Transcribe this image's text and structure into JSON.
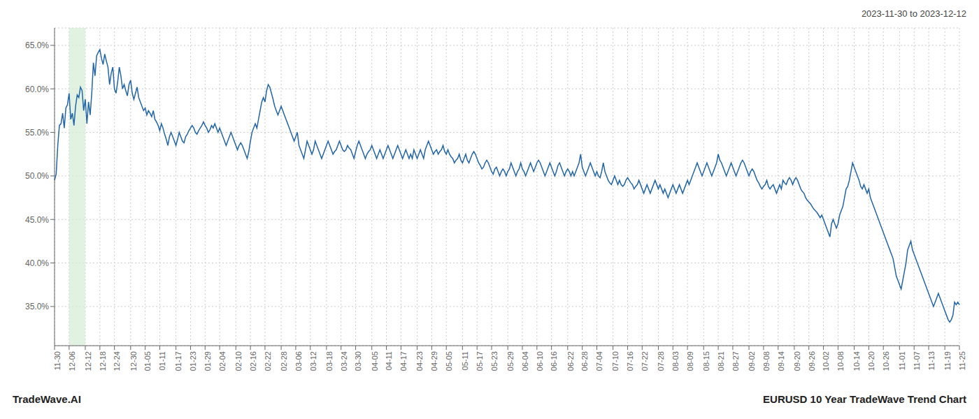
{
  "chart_data": {
    "type": "line",
    "title": "EURUSD 10 Year TradeWave Trend Chart",
    "subtitle": "2023-11-30 to 2023-12-12",
    "annotations": [
      "TradeWave.AI"
    ],
    "color": "#2266aa",
    "grid": true,
    "ylim": [
      30.5,
      67.0
    ],
    "yticks": [
      {
        "value": 35.0,
        "label": "35.0%"
      },
      {
        "value": 40.0,
        "label": "40.0%"
      },
      {
        "value": 45.0,
        "label": "45.0%"
      },
      {
        "value": 50.0,
        "label": "50.0%"
      },
      {
        "value": 55.0,
        "label": "55.0%"
      },
      {
        "value": 60.0,
        "label": "60.0%"
      },
      {
        "value": 65.0,
        "label": "65.0%"
      }
    ],
    "shaded_region": {
      "x_start": "12-06",
      "x_end": "12-12",
      "color": "#d6ecd6"
    },
    "categories": [
      "11-30",
      null,
      null,
      null,
      null,
      null,
      null,
      null,
      null,
      "12-06",
      null,
      null,
      null,
      null,
      null,
      null,
      null,
      null,
      null,
      "12-12",
      null,
      null,
      null,
      null,
      null,
      null,
      null,
      null,
      "12-18",
      null,
      null,
      null,
      null,
      null,
      null,
      null,
      null,
      "12-24",
      null,
      null,
      null,
      null,
      null,
      null,
      null,
      null,
      null,
      "12-30",
      null,
      null,
      null,
      null,
      null,
      null,
      null,
      null,
      "01-05",
      null,
      null,
      null,
      null,
      null,
      null,
      null,
      null,
      "01-11",
      null,
      null,
      null,
      null,
      null,
      null,
      null,
      null,
      null,
      "01-17",
      null,
      null,
      null,
      null,
      null,
      null,
      null,
      null,
      "01-23",
      null,
      null,
      null,
      null,
      null,
      null,
      null,
      null,
      "01-29",
      null,
      null,
      null,
      null,
      null,
      null,
      null,
      null,
      "02-04",
      null,
      null,
      null,
      null,
      null,
      null,
      null,
      null,
      null,
      "02-10",
      null,
      null,
      null,
      null,
      null,
      null,
      null,
      null,
      "02-16",
      null,
      null,
      null,
      null,
      null,
      null,
      null,
      null,
      "02-22",
      null,
      null,
      null,
      null,
      null,
      null,
      null,
      null,
      null,
      "02-28",
      null,
      null,
      null,
      null,
      null,
      null,
      null,
      null,
      "03-06",
      null,
      null,
      null,
      null,
      null,
      null,
      null,
      null,
      "03-12",
      null,
      null,
      null,
      null,
      null,
      null,
      null,
      null,
      null,
      "03-18",
      null,
      null,
      null,
      null,
      null,
      null,
      null,
      null,
      "03-24",
      null,
      null,
      null,
      null,
      null,
      null,
      null,
      null,
      "03-30",
      null,
      null,
      null,
      null,
      null,
      null,
      null,
      null,
      null,
      "04-05",
      null,
      null,
      null,
      null,
      null,
      null,
      null,
      null,
      "04-11",
      null,
      null,
      null,
      null,
      null,
      null,
      null,
      null,
      "04-17",
      null,
      null,
      null,
      null,
      null,
      null,
      null,
      null,
      null,
      "04-23",
      null,
      null,
      null,
      null,
      null,
      null,
      null,
      null,
      "04-29",
      null,
      null,
      null,
      null,
      null,
      null,
      null,
      null,
      "05-05",
      null,
      null,
      null,
      null,
      null,
      null,
      null,
      null,
      null,
      "05-11",
      null,
      null,
      null,
      null,
      null,
      null,
      null,
      null,
      "05-17",
      null,
      null,
      null,
      null,
      null,
      null,
      null,
      null,
      "05-23",
      null,
      null,
      null,
      null,
      null,
      null,
      null,
      null,
      null,
      "05-29",
      null,
      null,
      null,
      null,
      null,
      null,
      null,
      null,
      "06-04",
      null,
      null,
      null,
      null,
      null,
      null,
      null,
      null,
      "06-10",
      null,
      null,
      null,
      null,
      null,
      null,
      null,
      null,
      "06-16",
      null,
      null,
      null,
      null,
      null,
      null,
      null,
      null,
      null,
      "06-22",
      null,
      null,
      null,
      null,
      null,
      null,
      null,
      null,
      "06-28",
      null,
      null,
      null,
      null,
      null,
      null,
      null,
      null,
      "07-04",
      null,
      null,
      null,
      null,
      null,
      null,
      null,
      null,
      null,
      "07-10",
      null,
      null,
      null,
      null,
      null,
      null,
      null,
      null,
      "07-16",
      null,
      null,
      null,
      null,
      null,
      null,
      null,
      null,
      "07-22",
      null,
      null,
      null,
      null,
      null,
      null,
      null,
      null,
      null,
      "07-28",
      null,
      null,
      null,
      null,
      null,
      null,
      null,
      null,
      "08-03",
      null,
      null,
      null,
      null,
      null,
      null,
      null,
      null,
      "08-09",
      null,
      null,
      null,
      null,
      null,
      null,
      null,
      null,
      null,
      "08-15",
      null,
      null,
      null,
      null,
      null,
      null,
      null,
      null,
      "08-21",
      null,
      null,
      null,
      null,
      null,
      null,
      null,
      null,
      "08-27",
      null,
      null,
      null,
      null,
      null,
      null,
      null,
      null,
      null,
      "09-02",
      null,
      null,
      null,
      null,
      null,
      null,
      null,
      null,
      "09-08",
      null,
      null,
      null,
      null,
      null,
      null,
      null,
      null,
      "09-14",
      null,
      null,
      null,
      null,
      null,
      null,
      null,
      null,
      null,
      "09-20",
      null,
      null,
      null,
      null,
      null,
      null,
      null,
      null,
      "09-26",
      null,
      null,
      null,
      null,
      null,
      null,
      null,
      null,
      "10-02",
      null,
      null,
      null,
      null,
      null,
      null,
      null,
      null,
      "10-08",
      null,
      null,
      null,
      null,
      null,
      null,
      null,
      null,
      null,
      "10-14",
      null,
      null,
      null,
      null,
      null,
      null,
      null,
      null,
      "10-20",
      null,
      null,
      null,
      null,
      null,
      null,
      null,
      null,
      "10-26",
      null,
      null,
      null,
      null,
      null,
      null,
      null,
      null,
      null,
      "11-01",
      null,
      null,
      null,
      null,
      null,
      null,
      null,
      null,
      "11-07",
      null,
      null,
      null,
      null,
      null,
      null,
      null,
      null,
      "11-13",
      null,
      null,
      null,
      null,
      null,
      null,
      null,
      null,
      null,
      "11-19",
      null,
      null,
      null,
      null,
      null,
      null,
      null,
      null,
      "11-25"
    ],
    "values": [
      49.5,
      50.2,
      53.5,
      55.8,
      56.0,
      57.2,
      55.5,
      57.8,
      58.2,
      59.5,
      56.5,
      57.2,
      55.8,
      58.0,
      59.3,
      59.0,
      60.2,
      59.8,
      57.5,
      58.8,
      56.0,
      58.5,
      57.0,
      59.5,
      63.0,
      61.5,
      63.8,
      64.2,
      64.5,
      63.5,
      62.8,
      64.0,
      63.2,
      62.5,
      60.5,
      61.8,
      62.5,
      60.0,
      59.5,
      60.8,
      62.5,
      61.5,
      60.0,
      60.5,
      59.8,
      59.2,
      60.5,
      61.0,
      59.5,
      58.8,
      59.5,
      60.2,
      59.0,
      58.5,
      58.0,
      57.5,
      57.8,
      57.0,
      57.5,
      57.2,
      56.8,
      57.5,
      56.5,
      56.2,
      55.8,
      55.2,
      56.0,
      55.5,
      54.8,
      54.2,
      53.5,
      54.5,
      55.0,
      54.5,
      54.0,
      53.5,
      54.2,
      55.0,
      54.5,
      54.0,
      53.8,
      54.5,
      54.8,
      55.2,
      55.5,
      55.8,
      55.5,
      55.0,
      54.8,
      55.2,
      55.5,
      55.8,
      56.2,
      55.8,
      55.5,
      55.0,
      55.3,
      55.8,
      55.5,
      56.0,
      55.5,
      55.0,
      55.5,
      55.0,
      54.5,
      54.0,
      53.5,
      54.0,
      54.5,
      55.0,
      54.5,
      54.0,
      53.5,
      53.0,
      53.5,
      53.8,
      53.5,
      53.0,
      52.5,
      52.0,
      52.8,
      54.0,
      55.0,
      55.5,
      56.0,
      55.5,
      56.5,
      57.5,
      58.5,
      59.0,
      58.5,
      59.8,
      60.5,
      60.2,
      59.5,
      58.8,
      58.0,
      57.5,
      57.0,
      57.5,
      58.0,
      57.5,
      57.0,
      56.5,
      56.0,
      55.5,
      55.0,
      54.5,
      54.0,
      54.5,
      55.0,
      53.5,
      53.0,
      52.5,
      52.0,
      53.0,
      54.0,
      53.5,
      53.0,
      52.5,
      53.0,
      54.0,
      53.5,
      53.0,
      52.5,
      52.0,
      52.5,
      53.0,
      53.5,
      54.0,
      53.5,
      53.0,
      52.5,
      52.8,
      53.0,
      53.5,
      54.0,
      53.5,
      53.0,
      52.8,
      53.0,
      53.5,
      53.2,
      53.0,
      52.5,
      52.0,
      52.8,
      53.5,
      54.0,
      53.5,
      53.0,
      52.5,
      52.0,
      52.5,
      52.8,
      53.0,
      53.5,
      53.0,
      52.5,
      52.0,
      52.5,
      53.0,
      52.5,
      52.0,
      52.5,
      53.0,
      53.5,
      53.0,
      52.5,
      52.0,
      52.5,
      53.0,
      53.5,
      53.0,
      52.5,
      52.0,
      52.5,
      53.0,
      52.5,
      52.0,
      52.5,
      52.0,
      53.0,
      52.5,
      52.0,
      52.5,
      53.0,
      52.5,
      52.0,
      53.0,
      53.5,
      54.0,
      53.5,
      53.0,
      52.5,
      52.8,
      53.0,
      52.5,
      52.8,
      53.0,
      53.5,
      52.8,
      52.5,
      53.0,
      52.5,
      52.2,
      52.0,
      51.5,
      51.8,
      52.0,
      52.5,
      51.8,
      51.5,
      52.0,
      52.5,
      51.8,
      51.5,
      52.0,
      52.5,
      52.8,
      52.5,
      52.0,
      51.5,
      51.2,
      50.8,
      51.0,
      51.5,
      51.8,
      51.5,
      51.0,
      50.5,
      50.2,
      50.8,
      51.0,
      50.5,
      50.0,
      50.5,
      50.8,
      50.5,
      50.0,
      50.5,
      50.8,
      51.5,
      51.0,
      50.5,
      50.0,
      50.5,
      50.8,
      51.5,
      50.8,
      50.5,
      50.0,
      50.5,
      51.0,
      51.5,
      51.0,
      50.5,
      51.0,
      51.5,
      51.8,
      51.5,
      51.0,
      50.5,
      50.0,
      50.5,
      51.0,
      51.5,
      51.0,
      50.5,
      50.0,
      50.5,
      51.2,
      51.5,
      51.0,
      50.5,
      50.0,
      50.5,
      50.8,
      50.5,
      50.0,
      50.5,
      50.0,
      50.5,
      51.0,
      51.5,
      52.5,
      51.0,
      50.5,
      50.0,
      50.5,
      51.0,
      51.5,
      51.0,
      50.5,
      50.0,
      50.5,
      50.0,
      49.8,
      50.5,
      51.5,
      50.5,
      50.0,
      49.5,
      49.2,
      49.0,
      49.5,
      50.0,
      49.5,
      49.0,
      49.5,
      49.0,
      48.8,
      49.0,
      49.5,
      49.8,
      49.5,
      49.2,
      49.0,
      48.5,
      48.8,
      49.0,
      49.5,
      49.0,
      48.5,
      48.0,
      48.5,
      49.0,
      48.5,
      48.0,
      48.5,
      49.0,
      49.5,
      49.0,
      48.5,
      49.0,
      48.5,
      48.0,
      48.5,
      48.0,
      47.5,
      48.0,
      48.5,
      49.0,
      48.5,
      48.0,
      48.5,
      49.0,
      48.5,
      48.0,
      48.5,
      49.0,
      49.5,
      49.0,
      49.5,
      50.0,
      50.5,
      51.0,
      51.5,
      51.0,
      50.5,
      50.0,
      50.5,
      51.0,
      51.5,
      51.0,
      50.5,
      50.0,
      50.5,
      51.0,
      51.5,
      52.5,
      51.8,
      51.5,
      51.0,
      50.5,
      50.0,
      50.5,
      51.0,
      51.5,
      51.0,
      50.5,
      50.0,
      50.5,
      51.0,
      51.5,
      51.8,
      51.5,
      51.0,
      50.5,
      50.0,
      50.5,
      50.8,
      50.5,
      50.0,
      49.5,
      49.2,
      48.8,
      48.5,
      48.8,
      49.0,
      49.5,
      48.8,
      48.5,
      48.8,
      49.0,
      48.5,
      48.0,
      48.5,
      49.0,
      48.5,
      49.5,
      49.2,
      49.0,
      49.5,
      49.8,
      49.5,
      49.0,
      49.5,
      49.8,
      49.5,
      49.0,
      48.5,
      48.2,
      48.0,
      47.5,
      47.2,
      47.0,
      46.8,
      46.5,
      46.2,
      46.0,
      45.8,
      45.5,
      45.2,
      45.5,
      45.0,
      44.5,
      44.0,
      43.5,
      43.0,
      44.5,
      45.0,
      44.5,
      44.0,
      44.5,
      45.5,
      46.0,
      46.5,
      47.5,
      48.5,
      48.8,
      49.5,
      50.5,
      51.5,
      51.0,
      50.5,
      50.0,
      49.5,
      48.8,
      48.5,
      49.0,
      48.5,
      48.0,
      48.5,
      47.5,
      47.0,
      46.5,
      46.0,
      45.5,
      45.0,
      44.5,
      44.0,
      43.5,
      43.0,
      42.5,
      42.0,
      41.5,
      41.0,
      40.5,
      39.5,
      38.5,
      38.0,
      37.5,
      37.0,
      38.0,
      39.0,
      40.0,
      41.5,
      42.0,
      42.5,
      41.5,
      41.0,
      40.5,
      40.0,
      39.5,
      39.0,
      38.5,
      38.0,
      37.5,
      37.0,
      36.5,
      36.0,
      35.5,
      35.0,
      35.5,
      36.0,
      36.5,
      36.0,
      35.5,
      35.0,
      34.5,
      34.0,
      33.5,
      33.2,
      33.5,
      34.0,
      35.5,
      35.2,
      35.5,
      35.2
    ]
  }
}
